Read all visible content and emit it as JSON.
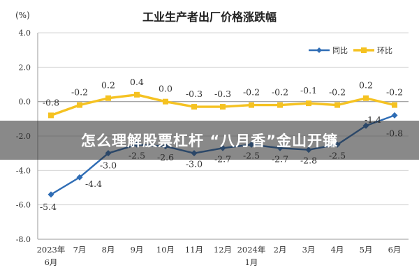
{
  "chart_data": {
    "type": "line",
    "title": "工业生产者出厂价格涨跌幅",
    "ylabel": "(%)",
    "ylim": [
      -8.0,
      4.0
    ],
    "yticks": [
      "4.0",
      "2.0",
      "0.0",
      "-2.0",
      "-4.0",
      "-6.0",
      "-8.0"
    ],
    "yticks_values": [
      4,
      2,
      0,
      -2,
      -4,
      -6,
      -8
    ],
    "categories": [
      "2023年6月",
      "7月",
      "8月",
      "9月",
      "10月",
      "11月",
      "12月",
      "2024年1月",
      "2月",
      "3月",
      "4月",
      "5月",
      "6月"
    ],
    "category_labels": [
      [
        "2023年",
        "6月"
      ],
      [
        "7月"
      ],
      [
        "8月"
      ],
      [
        "9月"
      ],
      [
        "10月"
      ],
      [
        "11月"
      ],
      [
        "12月"
      ],
      [
        "2024年",
        "1月"
      ],
      [
        "2月"
      ],
      [
        "3月"
      ],
      [
        "4月"
      ],
      [
        "5月"
      ],
      [
        "6月"
      ]
    ],
    "legend_position": "top-right",
    "grid": true,
    "series": [
      {
        "name": "同比",
        "color": "#2f6db5",
        "values": [
          -5.4,
          -4.4,
          -3.0,
          -2.5,
          -2.6,
          -3.0,
          -2.7,
          -2.5,
          -2.7,
          -2.8,
          -2.5,
          -1.4,
          -0.8
        ],
        "labels": [
          "-5.4",
          "-4.4",
          "-3.0",
          "-2.5",
          "-2.6",
          "-3.0",
          "-2.7",
          "-2.5",
          "-2.7",
          "-2.8",
          "-2.5",
          "-1.4",
          "-0.8"
        ]
      },
      {
        "name": "环比",
        "color": "#f5c221",
        "values": [
          -0.8,
          -0.2,
          0.2,
          0.4,
          0.0,
          -0.3,
          -0.3,
          -0.2,
          -0.2,
          -0.1,
          -0.2,
          0.2,
          -0.2
        ],
        "labels": [
          "-0.8",
          "-0.2",
          "0.2",
          "0.4",
          "0.0",
          "-0.3",
          "-0.3",
          "-0.2",
          "-0.2",
          "-0.1",
          "-0.2",
          "0.2",
          "-0.2"
        ]
      }
    ]
  },
  "overlay": {
    "headline": "怎么理解股票杠杆 “八月香”金山开镰"
  }
}
